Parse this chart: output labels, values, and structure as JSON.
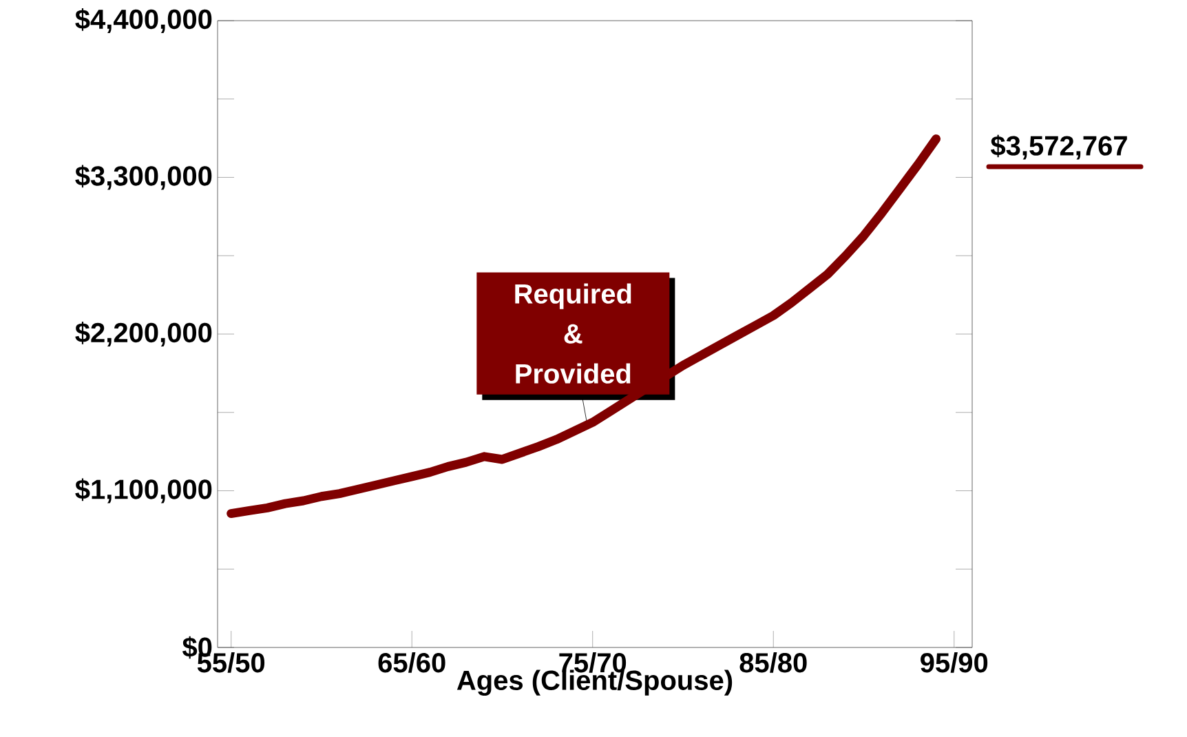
{
  "chart_data": {
    "type": "line",
    "xlabel": "Ages (Client/Spouse)",
    "categories": [
      "55/50",
      null,
      null,
      null,
      null,
      null,
      null,
      null,
      null,
      null,
      "65/60",
      null,
      null,
      null,
      null,
      null,
      null,
      null,
      null,
      null,
      "75/70",
      null,
      null,
      null,
      null,
      null,
      null,
      null,
      null,
      null,
      "85/80",
      null,
      null,
      null,
      null,
      null,
      null,
      null,
      null,
      null,
      "95/90"
    ],
    "series": [
      {
        "color": "#800000",
        "values": [
          940000,
          960000,
          980000,
          1010000,
          1030000,
          1060000,
          1080000,
          1110000,
          1140000,
          1170000,
          1200000,
          1230000,
          1270000,
          1300000,
          1340000,
          1320000,
          1365000,
          1410000,
          1460000,
          1520000,
          1580000,
          1660000,
          1740000,
          1820000,
          1900000,
          1980000,
          2050000,
          2120000,
          2190000,
          2260000,
          2330000,
          2420000,
          2520000,
          2620000,
          2750000,
          2890000,
          3050000,
          3220000,
          3390000,
          3570000,
          null
        ]
      }
    ],
    "ylim": [
      0,
      4400000
    ],
    "yticks": [
      {
        "value": 0,
        "label": "$0"
      },
      {
        "value": 550000,
        "label": null
      },
      {
        "value": 1100000,
        "label": "$1,100,000"
      },
      {
        "value": 1650000,
        "label": null
      },
      {
        "value": 2200000,
        "label": "$2,200,000"
      },
      {
        "value": 2750000,
        "label": null
      },
      {
        "value": 3300000,
        "label": "$3,300,000"
      },
      {
        "value": 3850000,
        "label": null
      },
      {
        "value": 4400000,
        "label": "$4,400,000"
      }
    ],
    "annotations": [
      {
        "text": "Required & Provided",
        "y": 1580000
      },
      "$3,572,767"
    ]
  }
}
